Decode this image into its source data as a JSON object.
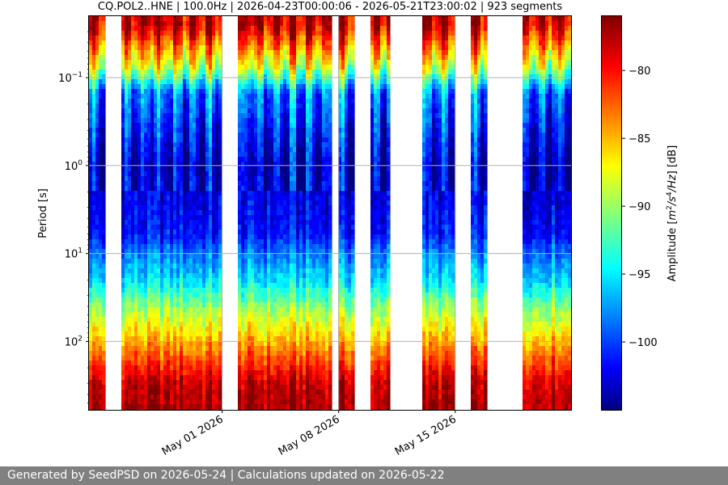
{
  "chart_data": {
    "type": "heatmap",
    "title": "CQ.POL2..HNE | 100.0Hz | 2026-04-23T00:00:06 - 2026-05-21T23:00:02 | 923 segments",
    "ylabel": "Period [s]",
    "ylabel_scale": "log (inverted)",
    "xlabel": "",
    "x_ticks": [
      "May 01 2026",
      "May 08 2026",
      "May 15 2026"
    ],
    "x_tick_dates": [
      "2026-05-01",
      "2026-05-08",
      "2026-05-15"
    ],
    "x_range": [
      "2026-04-23T00:00:06",
      "2026-05-21T23:00:02"
    ],
    "y_range": [
      0.02,
      600
    ],
    "y_ticks": [
      {
        "value": 0.1,
        "base": "10",
        "exp": "−1"
      },
      {
        "value": 1,
        "base": "10",
        "exp": "0"
      },
      {
        "value": 10,
        "base": "10",
        "exp": "1"
      },
      {
        "value": 100,
        "base": "10",
        "exp": "2"
      }
    ],
    "grid": true,
    "colormap": "jet",
    "colorbar": {
      "label_main": "Amplitude [",
      "label_var": "m",
      "label_sup1": "2",
      "label_mid": "/s",
      "label_sup2": "4",
      "label_end": "/Hz",
      "label_tail": "] [dB]",
      "range": [
        -105,
        -76
      ],
      "ticks": [
        -80,
        -85,
        -90,
        -95,
        -100
      ],
      "tick_labels": [
        "−80",
        "−85",
        "−90",
        "−95",
        "−100"
      ]
    },
    "data_gaps_days": [
      [
        "2026-04-23T22:00",
        "2026-04-25T00:00"
      ],
      [
        "2026-05-01T00:00",
        "2026-05-02T00:00"
      ],
      [
        "2026-05-07T12:00",
        "2026-05-08T00:00"
      ],
      [
        "2026-05-09T00:00",
        "2026-05-10T00:00"
      ],
      [
        "2026-05-11T00:00",
        "2026-05-13T00:00"
      ],
      [
        "2026-05-14T22:00",
        "2026-05-16T00:00"
      ],
      [
        "2026-05-17T00:00",
        "2026-05-19T00:00"
      ]
    ],
    "color_levels_db": [
      {
        "period": 0.025,
        "db": -78
      },
      {
        "period": 0.075,
        "db": -88
      },
      {
        "period": 0.15,
        "db": -98
      },
      {
        "period": 1,
        "db": -103
      },
      {
        "period": 6,
        "db": -101
      },
      {
        "period": 10,
        "db": -98
      },
      {
        "period": 20,
        "db": -95
      },
      {
        "period": 40,
        "db": -90
      },
      {
        "period": 80,
        "db": -86
      },
      {
        "period": 150,
        "db": -82
      },
      {
        "period": 300,
        "db": -78
      },
      {
        "period": 600,
        "db": -77
      }
    ]
  },
  "footer": {
    "text": "Generated by SeedPSD on 2026-05-24 | Calculations updated on 2026-05-22"
  }
}
